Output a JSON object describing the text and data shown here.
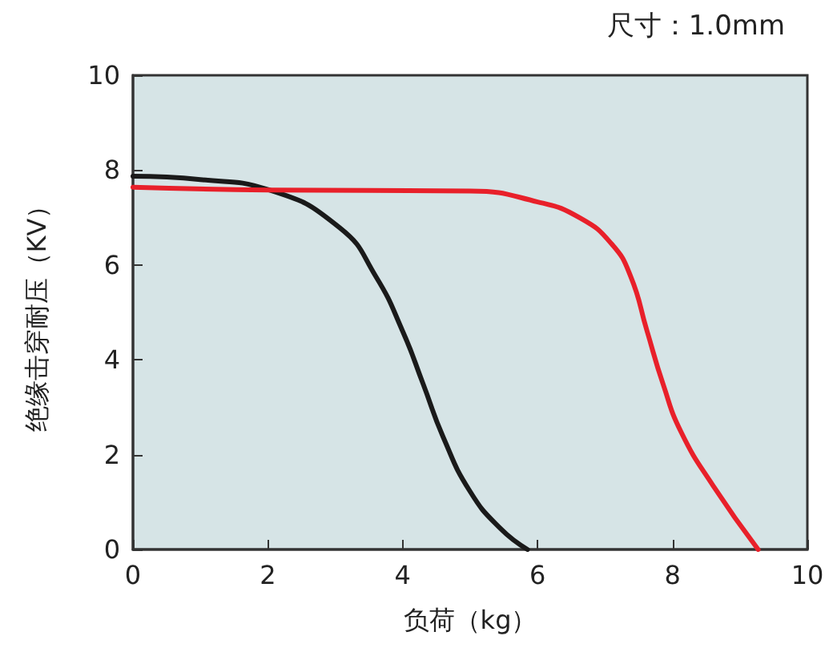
{
  "chart_data": {
    "type": "line",
    "xlabel": "负荷（kg）",
    "ylabel": "绝缘击穿耐压（KV）",
    "annotations": [
      "尺寸：1.0mm"
    ],
    "xlim": [
      0,
      10
    ],
    "xticks": [
      0,
      2,
      4,
      6,
      8,
      10
    ],
    "ylim": [
      0,
      10
    ],
    "yticks": [
      0,
      2,
      4,
      6,
      8,
      10
    ],
    "grid": false,
    "marker": "none",
    "line_style": "solid",
    "series": [
      {
        "color": "#1a1a1a",
        "x": [
          0,
          1,
          2,
          3.07,
          3.6,
          4.0,
          4.3,
          4.6,
          5.0,
          5.45,
          5.85
        ],
        "values": [
          7.87,
          7.8,
          7.59,
          6.78,
          5.76,
          4.6,
          3.5,
          2.37,
          1.22,
          0.44,
          0
        ]
      },
      {
        "color": "#e8202a",
        "x": [
          0,
          2,
          5,
          6,
          6.63,
          7.1,
          7.38,
          7.62,
          7.86,
          8.13,
          8.6,
          9.27
        ],
        "values": [
          7.64,
          7.58,
          7.56,
          7.33,
          6.99,
          6.44,
          5.76,
          4.62,
          3.49,
          2.47,
          1.35,
          0
        ]
      }
    ]
  }
}
